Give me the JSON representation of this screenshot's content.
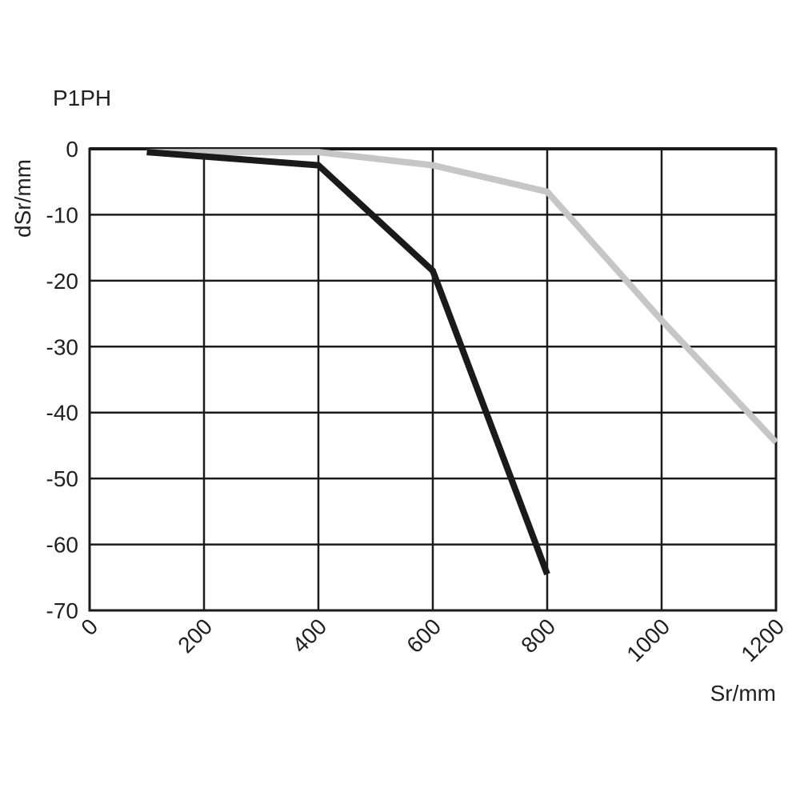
{
  "chart_data": {
    "type": "line",
    "title": "P1PH",
    "xlabel": "Sr/mm",
    "ylabel": "dSr/mm",
    "xlim": [
      0,
      1200
    ],
    "ylim": [
      -70,
      0
    ],
    "x_ticks": [
      0,
      200,
      400,
      600,
      800,
      1000,
      1200
    ],
    "y_ticks": [
      0,
      -10,
      -20,
      -30,
      -40,
      -50,
      -60,
      -70
    ],
    "x_tick_labels": [
      "0",
      "200",
      "400",
      "600",
      "800",
      "1000",
      "1200"
    ],
    "y_tick_labels": [
      "0",
      "-10",
      "-20",
      "-30",
      "-40",
      "-50",
      "-60",
      "-70"
    ],
    "grid": true,
    "legend": false,
    "series": [
      {
        "color": "#1a1a1a",
        "points": [
          {
            "x": 100,
            "y": -0.5
          },
          {
            "x": 400,
            "y": -2.5
          },
          {
            "x": 600,
            "y": -18.5
          },
          {
            "x": 800,
            "y": -64.5
          }
        ]
      },
      {
        "color": "#c6c6c6",
        "points": [
          {
            "x": 100,
            "y": -0.5
          },
          {
            "x": 400,
            "y": -0.5
          },
          {
            "x": 600,
            "y": -2.5
          },
          {
            "x": 800,
            "y": -6.5
          },
          {
            "x": 1000,
            "y": -26
          },
          {
            "x": 1200,
            "y": -44.5
          }
        ]
      }
    ]
  }
}
